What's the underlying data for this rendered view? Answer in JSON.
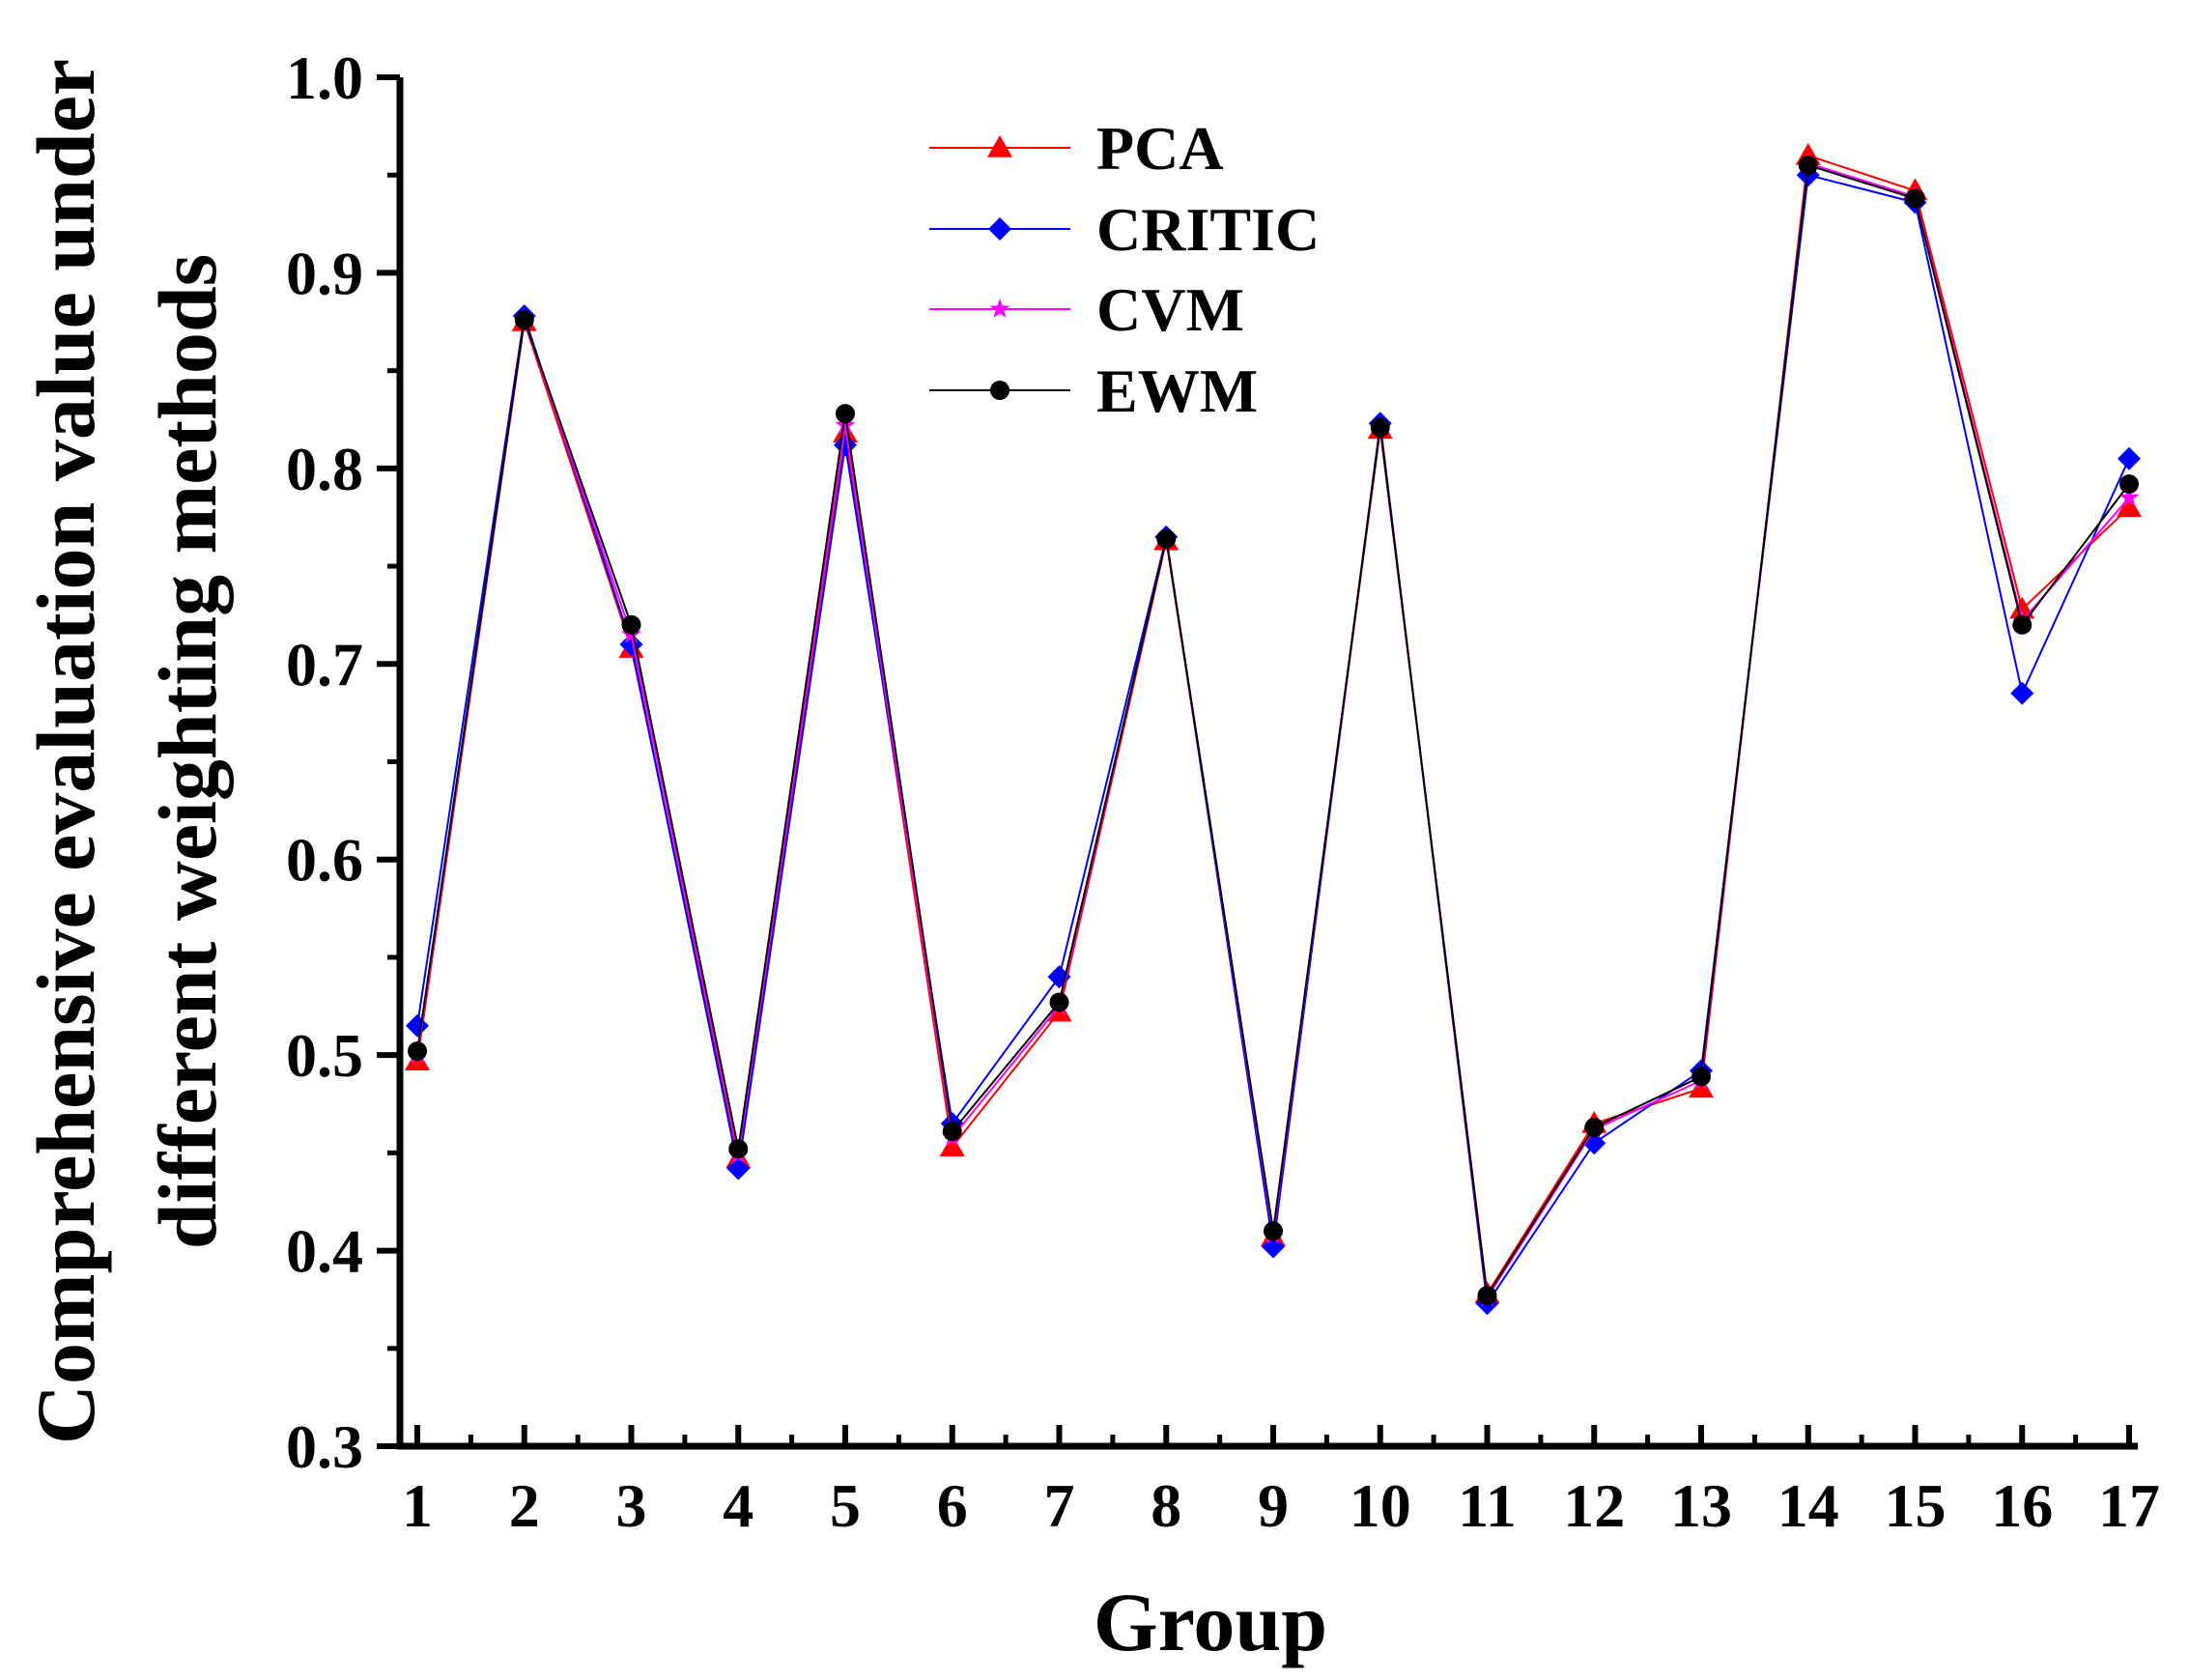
{
  "chart_data": {
    "type": "line",
    "title": "",
    "xlabel": "Group",
    "ylabel_lines": [
      "Comprehensive evaluation value under",
      "different weighting methods"
    ],
    "ylim": [
      0.3,
      1.0
    ],
    "yticks": [
      "0.3",
      "0.4",
      "0.5",
      "0.6",
      "0.7",
      "0.8",
      "0.9",
      "1.0"
    ],
    "categories": [
      "1",
      "2",
      "3",
      "4",
      "5",
      "6",
      "7",
      "8",
      "9",
      "10",
      "11",
      "12",
      "13",
      "14",
      "15",
      "16",
      "17"
    ],
    "legend_position": "top-center",
    "series": [
      {
        "name": "PCA",
        "color": "#ff0000",
        "marker": "triangle",
        "values": [
          0.497,
          0.875,
          0.708,
          0.447,
          0.818,
          0.453,
          0.522,
          0.763,
          0.407,
          0.82,
          0.378,
          0.465,
          0.483,
          0.96,
          0.942,
          0.728,
          0.78
        ]
      },
      {
        "name": "CRITIC",
        "color": "#0000ff",
        "marker": "diamond",
        "values": [
          0.515,
          0.878,
          0.71,
          0.442,
          0.812,
          0.465,
          0.54,
          0.765,
          0.402,
          0.823,
          0.373,
          0.455,
          0.492,
          0.95,
          0.936,
          0.685,
          0.805
        ]
      },
      {
        "name": "CVM",
        "color": "#ff00ff",
        "marker": "star",
        "values": [
          0.5,
          0.876,
          0.715,
          0.449,
          0.822,
          0.458,
          0.525,
          0.764,
          0.408,
          0.821,
          0.376,
          0.462,
          0.487,
          0.956,
          0.939,
          0.722,
          0.785
        ]
      },
      {
        "name": "EWM",
        "color": "#000000",
        "marker": "circle",
        "values": [
          0.502,
          0.876,
          0.72,
          0.452,
          0.828,
          0.461,
          0.527,
          0.764,
          0.41,
          0.821,
          0.377,
          0.463,
          0.489,
          0.955,
          0.938,
          0.72,
          0.792
        ]
      }
    ]
  }
}
